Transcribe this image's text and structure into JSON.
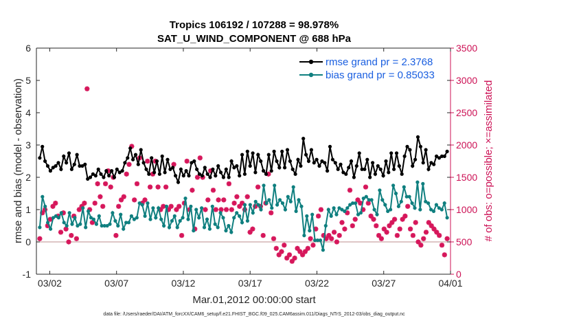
{
  "chart_data": {
    "type": "line",
    "title": "Tropics 106192 / 107288 = 98.978%",
    "subtitle": "SAT_U_WIND_COMPONENT @ 688 hPa",
    "xlabel": "Mar.01,2012 00:00:00 start",
    "ylabel": "rmse and bias (model - observation)",
    "ylabel_right": "# of obs: o=possible; ×=assimilated",
    "xlim": [
      0,
      31
    ],
    "ylim": [
      -1,
      6
    ],
    "ylim_right": [
      0,
      3500
    ],
    "x_ticks": [
      {
        "x": 1,
        "label": "03/02"
      },
      {
        "x": 6,
        "label": "03/07"
      },
      {
        "x": 11,
        "label": "03/12"
      },
      {
        "x": 16,
        "label": "03/17"
      },
      {
        "x": 21,
        "label": "03/22"
      },
      {
        "x": 26,
        "label": "03/27"
      },
      {
        "x": 31,
        "label": "04/01"
      }
    ],
    "y_ticks": [
      -1,
      0,
      1,
      2,
      3,
      4,
      5,
      6
    ],
    "y_ticks_right": [
      0,
      500,
      1000,
      1500,
      2000,
      2500,
      3000,
      3500
    ],
    "zero_line": 0,
    "legend_position": "top-right",
    "colors": {
      "rmse": "#000000",
      "bias": "#0f7f7f",
      "obs": "#d6175b",
      "legend_text": "#1a5fe0",
      "zero_line": "#c9a3a3"
    },
    "series": [
      {
        "name": "rmse grand pr = 2.3768",
        "color": "#000000",
        "values": [
          2.6,
          2.95,
          2.5,
          2.35,
          2.2,
          2.3,
          2.35,
          2.45,
          2.25,
          2.65,
          2.45,
          2.75,
          2.25,
          2.4,
          2.7,
          2.35,
          2.35,
          2.4,
          1.95,
          2.0,
          2.1,
          2.05,
          2.25,
          2.1,
          2.0,
          2.2,
          2.05,
          2.2,
          2.0,
          2.25,
          2.15,
          2.2,
          2.45,
          2.6,
          2.9,
          2.55,
          2.7,
          2.4,
          2.85,
          2.45,
          2.25,
          2.1,
          2.6,
          2.15,
          2.5,
          2.1,
          2.65,
          2.15,
          2.55,
          2.25,
          2.3,
          2.05,
          1.85,
          2.25,
          2.05,
          2.2,
          2.05,
          2.45,
          2.5,
          2.25,
          2.1,
          2.05,
          2.3,
          2.1,
          2.0,
          2.25,
          2.05,
          2.35,
          2.15,
          2.0,
          2.25,
          2.0,
          2.5,
          2.3,
          2.35,
          2.05,
          2.7,
          2.1,
          2.8,
          2.35,
          2.75,
          2.15,
          2.7,
          2.5,
          2.2,
          2.1,
          2.7,
          2.2,
          2.8,
          2.5,
          2.3,
          2.8,
          2.3,
          2.85,
          2.5,
          2.25,
          2.1,
          2.55,
          2.35,
          3.2,
          2.7,
          2.5,
          2.85,
          2.45,
          2.55,
          2.35,
          2.5,
          2.45,
          2.2,
          2.95,
          2.55,
          2.45,
          2.25,
          2.4,
          2.15,
          2.1,
          2.3,
          2.5,
          2.0,
          2.35,
          2.75,
          2.25,
          2.25,
          2.55,
          2.0,
          2.45,
          2.1,
          2.35,
          2.25,
          2.05,
          2.5,
          2.15,
          2.75,
          2.25,
          2.75,
          2.35,
          2.1,
          2.65,
          2.95,
          2.85,
          2.35,
          2.55,
          3.25,
          2.95,
          2.45,
          2.85,
          2.25,
          2.45,
          2.4,
          2.65,
          2.6,
          2.65,
          2.65,
          2.8
        ]
      },
      {
        "name": "bias grand pr = 0.85033",
        "color": "#0f7f7f",
        "values": [
          0.45,
          1.4,
          1.1,
          0.6,
          0.4,
          0.75,
          0.8,
          0.75,
          0.9,
          0.6,
          0.5,
          0.9,
          0.55,
          0.75,
          0.5,
          0.55,
          1.05,
          0.45,
          0.95,
          0.75,
          0.7,
          0.55,
          0.8,
          0.5,
          0.5,
          0.5,
          0.55,
          0.9,
          0.65,
          0.5,
          0.85,
          0.4,
          0.6,
          0.6,
          0.8,
          0.7,
          0.75,
          1.2,
          1.15,
          0.8,
          1.2,
          0.7,
          1.05,
          0.75,
          1.05,
          0.7,
          0.5,
          1.1,
          0.45,
          0.65,
          0.8,
          0.45,
          0.65,
          0.75,
          1.35,
          0.7,
          1.1,
          0.35,
          1.0,
          0.75,
          1.05,
          0.45,
          0.7,
          0.4,
          1.1,
          0.55,
          0.45,
          0.9,
          0.75,
          0.35,
          0.5,
          0.3,
          0.75,
          0.9,
          0.8,
          0.6,
          1.15,
          0.65,
          1.15,
          0.9,
          1.25,
          1.15,
          1.0,
          1.75,
          1.2,
          1.3,
          1.05,
          1.75,
          1.15,
          1.3,
          1.2,
          1.0,
          1.4,
          1.25,
          1.7,
          0.95,
          1.3,
          1.1,
          0.2,
          0.8,
          0.35,
          0.85,
          0.05,
          0.05,
          0.05,
          -0.25,
          0.5,
          1.0,
          0.8,
          1.05,
          0.85,
          1.05,
          1.0,
          0.95,
          1.05,
          1.15,
          1.2,
          1.2,
          0.85,
          0.9,
          1.35,
          1.4,
          1.3,
          1.3,
          1.0,
          0.85,
          1.6,
          1.3,
          1.15,
          0.95,
          1.0,
          1.75,
          1.5,
          1.1,
          1.25,
          1.7,
          1.4,
          1.4,
          1.2,
          1.05,
          1.85,
          1.0,
          1.8,
          1.25,
          1.2,
          1.0,
          0.95,
          1.15,
          1.05,
          1.0,
          1.2,
          0.75
        ]
      }
    ],
    "obs_assimilated": {
      "name": "# of obs assimilated",
      "color": "#d6175b",
      "values": [
        550,
        950,
        1000,
        750,
        850,
        1050,
        1100,
        900,
        650,
        950,
        700,
        500,
        600,
        900,
        550,
        1000,
        1050,
        1100,
        2870,
        1000,
        800,
        1100,
        1400,
        1200,
        1050,
        1400,
        1600,
        1350,
        1500,
        600,
        1050,
        1150,
        1200,
        1550,
        1700,
        1980,
        1150,
        1400,
        1800,
        1100,
        1150,
        1750,
        1350,
        1550,
        1750,
        1350,
        1000,
        1050,
        1350,
        1000,
        1050,
        1700,
        1000,
        1050,
        600,
        1100,
        1750,
        1000,
        1300,
        700,
        1500,
        1800,
        1500,
        1000,
        1150,
        1600,
        1300,
        1000,
        1150,
        1000,
        1150,
        1000,
        1400,
        1000,
        1100,
        1200,
        1050,
        1100,
        1000,
        1200,
        650,
        700,
        1050,
        1350,
        1050,
        600,
        1100,
        1550,
        950,
        550,
        400,
        300,
        350,
        450,
        250,
        300,
        200,
        250,
        400,
        350,
        300,
        350,
        400,
        550,
        450,
        700,
        900,
        1000,
        600,
        550,
        600,
        550,
        650,
        500,
        600,
        800,
        700,
        950,
        1300,
        750,
        850,
        1150,
        1100,
        1000,
        1350,
        1100,
        900,
        850,
        750,
        600,
        550,
        700,
        650,
        750,
        800,
        850,
        600,
        700,
        850,
        900,
        1050,
        700,
        600,
        800,
        500,
        450,
        550,
        650,
        800,
        750,
        700,
        650,
        600,
        450,
        300,
        550
      ]
    }
  },
  "footer": "data file: /Users/raeder/DAI/ATM_forcXX/CAM6_setup/f.e21.FHIST_BGC.f09_025.CAM6assim.011/Diags_NTrS_2012-03/obs_diag_output.nc"
}
